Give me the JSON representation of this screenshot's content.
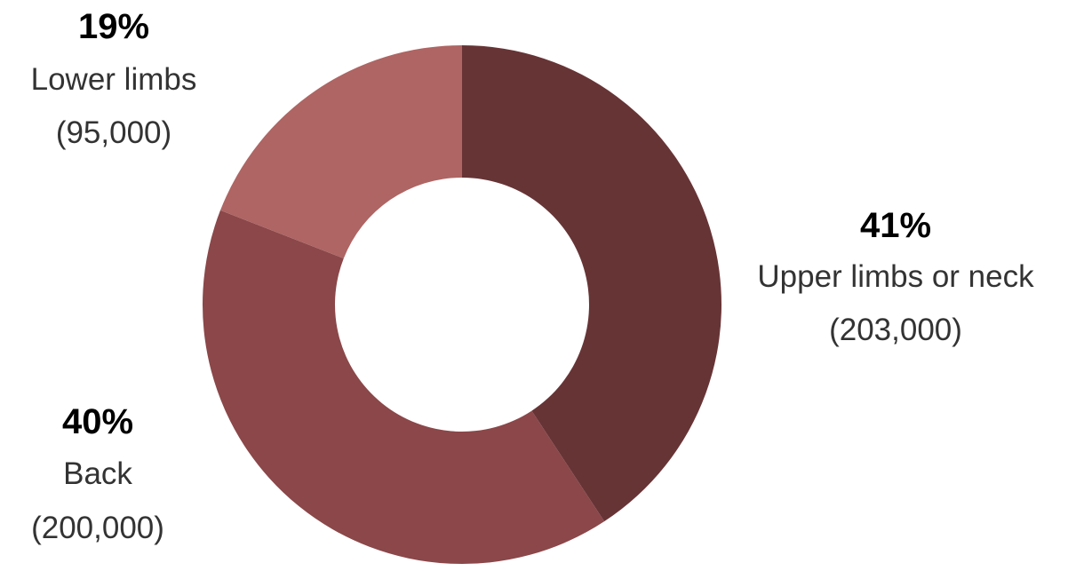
{
  "chart_data": {
    "type": "pie",
    "style": "donut",
    "slices": [
      {
        "label": "Upper limbs or neck",
        "percent": "41%",
        "count": "(203,000)",
        "value": 203000,
        "color": "#673436"
      },
      {
        "label": "Back",
        "percent": "40%",
        "count": "(200,000)",
        "value": 200000,
        "color": "#8b4749"
      },
      {
        "label": "Lower limbs",
        "percent": "19%",
        "count": "(95,000)",
        "value": 95000,
        "color": "#ae6563"
      }
    ],
    "legend": "none"
  }
}
